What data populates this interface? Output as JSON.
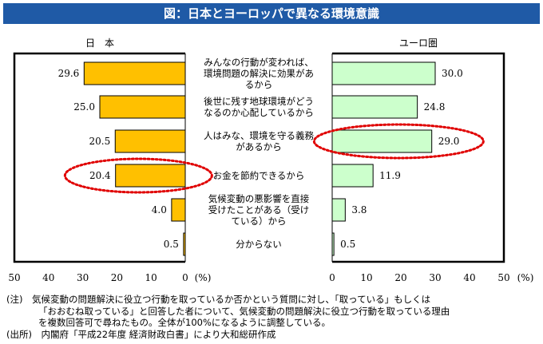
{
  "title": "図：日本とヨーロッパで異なる環境意識",
  "colors": {
    "title_bg": "#1f5aa6",
    "japan_bar": "#ffc000",
    "europe_bar": "#ccffcc",
    "highlight": "#e00000"
  },
  "chart_data": {
    "type": "bar",
    "orientation": "horizontal",
    "layout": "back-to-back",
    "title": "図：日本とヨーロッパで異なる環境意識",
    "categories": [
      [
        "みんなの行動が変われば、",
        "環境問題の解決に効果があ",
        "るから"
      ],
      [
        "後世に残す地球環境がどう",
        "なるのか心配しているから"
      ],
      [
        "人はみな、環境を守る義務",
        "があるから"
      ],
      [
        "お金を節約できるから"
      ],
      [
        "気候変動の悪影響を直接",
        "受けたことがある（受け",
        "ている）から"
      ],
      [
        "分からない"
      ]
    ],
    "series": [
      {
        "name": "日　本",
        "values": [
          29.6,
          25.0,
          20.5,
          20.4,
          4.0,
          0.5
        ],
        "labels": [
          "29.6",
          "25.0",
          "20.5",
          "20.4",
          "4.0",
          "0.5"
        ],
        "highlight_index": 3
      },
      {
        "name": "ユーロ圏",
        "values": [
          30.0,
          24.8,
          29.0,
          11.9,
          3.8,
          0.5
        ],
        "labels": [
          "30.0",
          "24.8",
          "29.0",
          "11.9",
          "3.8",
          "0.5"
        ],
        "highlight_index": 2
      }
    ],
    "xlim": [
      0,
      50
    ],
    "ticks_left": [
      "50",
      "40",
      "30",
      "20",
      "10",
      "0"
    ],
    "ticks_right": [
      "0",
      "10",
      "20",
      "30",
      "40",
      "50"
    ],
    "unit": "(%)",
    "grid": false
  },
  "notes": {
    "note1_line1": "(注)　気候変動の問題解決に役立つ行動を取っているか否かという質問に対し、「取っている」もしくは",
    "note1_line2": "「おおむね取っている」と回答した者について、気候変動の問題解決に役立つ行動を取っている理由",
    "note1_line3": "を複数回答可で尋ねたもの。全体が100%になるように調整している。",
    "source": "(出所)　内閣府「平成22年度 経済財政白書」により大和総研作成"
  }
}
